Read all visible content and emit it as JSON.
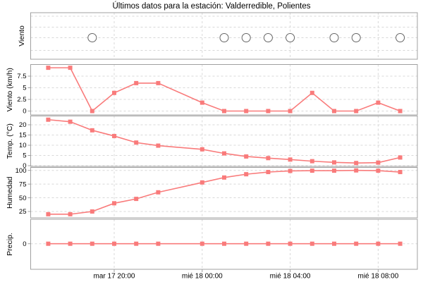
{
  "colors": {
    "series": "#f97b7b",
    "grid": "#d8d8d8",
    "frame": "#a0a0a0",
    "text": "#000000",
    "calm_circle": "#666666",
    "background": "#ffffff"
  },
  "chart_data": {
    "type": "line",
    "title": "Últimos datos para la estación: Valderredible, Polientes",
    "legend": "none",
    "grid": "dashed",
    "x": {
      "hours_since_mar17_0000": [
        17,
        18,
        19,
        20,
        21,
        22,
        24,
        25,
        26,
        27,
        28,
        29,
        30,
        31,
        32,
        33
      ],
      "point_times": [
        "17:00",
        "18:00",
        "19:00",
        "20:00",
        "21:00",
        "22:00",
        "00:00",
        "01:00",
        "02:00",
        "03:00",
        "04:00",
        "05:00",
        "06:00",
        "07:00",
        "08:00",
        "09:00"
      ],
      "tick_hours": [
        20,
        24,
        28,
        32
      ],
      "tick_labels": [
        "mar 17 20:00",
        "mié 18 00:00",
        "mié 18 04:00",
        "mié 18 08:00"
      ]
    },
    "panels": [
      {
        "ylabel": "Viento",
        "subtype": "wind-direction-calm-circles",
        "circle_hours": [
          19,
          25,
          26,
          27,
          28,
          30,
          31,
          33
        ]
      },
      {
        "ylabel": "Viento (km/h)",
        "yticks": [
          0,
          2.5,
          5,
          7.5
        ],
        "ylim": [
          -0.3,
          10
        ],
        "values": [
          9.3,
          9.3,
          0,
          3.9,
          6,
          6,
          1.8,
          0,
          0,
          0,
          0,
          3.9,
          0,
          0,
          1.8,
          0
        ]
      },
      {
        "ylabel": "Temp. (°C)",
        "yticks": [
          0,
          5,
          10,
          15,
          20
        ],
        "ylim": [
          -1.5,
          24.3
        ],
        "values": [
          22.5,
          21.5,
          17.3,
          14.5,
          11.3,
          9.8,
          8,
          6,
          4.5,
          3.7,
          3,
          2.2,
          1.6,
          1.3,
          1.5,
          4
        ]
      },
      {
        "ylabel": "Humedad",
        "yticks": [
          25,
          50,
          75,
          100
        ],
        "ylim": [
          14,
          105
        ],
        "values": [
          20,
          20,
          25,
          40,
          48,
          60,
          78,
          87,
          93,
          97,
          99,
          99.5,
          99.5,
          100,
          99.5,
          97
        ]
      },
      {
        "ylabel": "Precip.",
        "yticks": [
          0
        ],
        "ylim": [
          -35,
          35
        ],
        "values": [
          0,
          0,
          0,
          0,
          0,
          0,
          0,
          0,
          0,
          0,
          0,
          0,
          0,
          0,
          0,
          0
        ]
      }
    ]
  }
}
